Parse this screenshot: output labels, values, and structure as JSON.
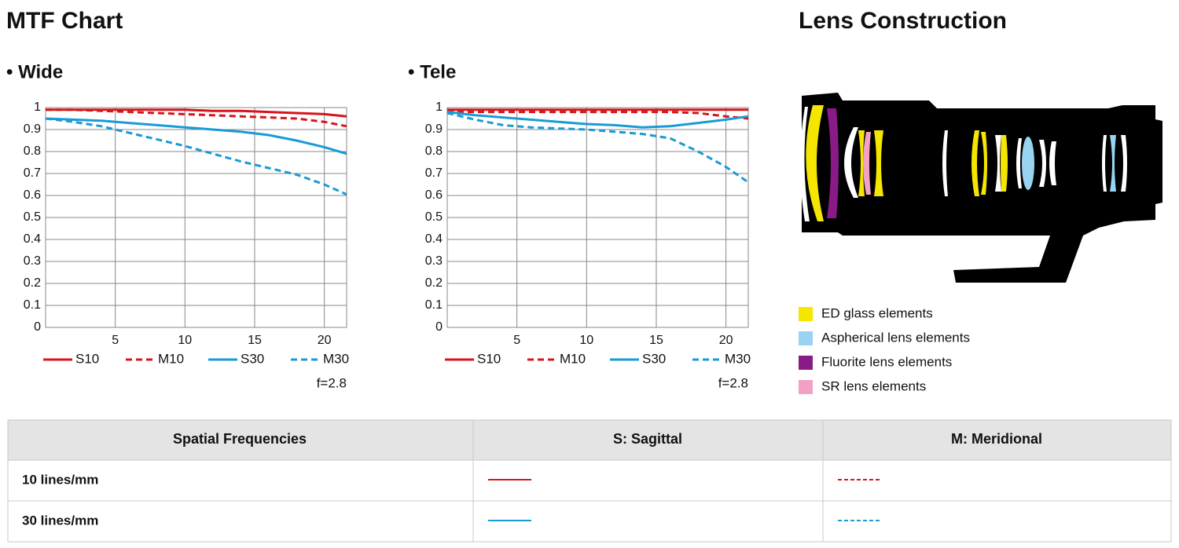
{
  "header": {
    "title": "MTF Chart"
  },
  "chart_data": [
    {
      "type": "line",
      "title": "• Wide",
      "x": [
        0,
        2,
        4,
        6,
        8,
        10,
        12,
        14,
        16,
        18,
        20,
        21.6
      ],
      "xlim": [
        0,
        21.6
      ],
      "xticks": [
        5,
        10,
        15,
        20
      ],
      "ylim": [
        0,
        1
      ],
      "yticks": [
        0,
        0.1,
        0.2,
        0.3,
        0.4,
        0.5,
        0.6,
        0.7,
        0.8,
        0.9,
        1
      ],
      "grid": true,
      "annotation": "f=2.8",
      "series": [
        {
          "name": "S10",
          "color": "#d7141a",
          "dashed": false,
          "values": [
            0.99,
            0.99,
            0.99,
            0.99,
            0.99,
            0.99,
            0.985,
            0.985,
            0.98,
            0.975,
            0.97,
            0.96
          ]
        },
        {
          "name": "M10",
          "color": "#d7141a",
          "dashed": true,
          "values": [
            0.99,
            0.99,
            0.985,
            0.98,
            0.975,
            0.97,
            0.965,
            0.96,
            0.955,
            0.95,
            0.935,
            0.915
          ]
        },
        {
          "name": "S30",
          "color": "#1a9ad6",
          "dashed": false,
          "values": [
            0.95,
            0.945,
            0.94,
            0.93,
            0.92,
            0.91,
            0.9,
            0.89,
            0.875,
            0.85,
            0.82,
            0.79
          ]
        },
        {
          "name": "M30",
          "color": "#1a9ad6",
          "dashed": true,
          "values": [
            0.95,
            0.935,
            0.915,
            0.885,
            0.855,
            0.825,
            0.79,
            0.755,
            0.725,
            0.695,
            0.65,
            0.605
          ]
        }
      ]
    },
    {
      "type": "line",
      "title": "• Tele",
      "x": [
        0,
        2,
        4,
        6,
        8,
        10,
        12,
        14,
        16,
        18,
        20,
        21.6
      ],
      "xlim": [
        0,
        21.6
      ],
      "xticks": [
        5,
        10,
        15,
        20
      ],
      "ylim": [
        0,
        1
      ],
      "yticks": [
        0,
        0.1,
        0.2,
        0.3,
        0.4,
        0.5,
        0.6,
        0.7,
        0.8,
        0.9,
        1
      ],
      "grid": true,
      "annotation": "f=2.8",
      "series": [
        {
          "name": "S10",
          "color": "#d7141a",
          "dashed": false,
          "values": [
            0.99,
            0.99,
            0.99,
            0.99,
            0.99,
            0.99,
            0.99,
            0.99,
            0.99,
            0.99,
            0.99,
            0.99
          ]
        },
        {
          "name": "M10",
          "color": "#d7141a",
          "dashed": true,
          "values": [
            0.98,
            0.98,
            0.98,
            0.98,
            0.98,
            0.98,
            0.98,
            0.98,
            0.98,
            0.975,
            0.96,
            0.95
          ]
        },
        {
          "name": "S30",
          "color": "#1a9ad6",
          "dashed": false,
          "values": [
            0.98,
            0.965,
            0.955,
            0.945,
            0.935,
            0.925,
            0.92,
            0.91,
            0.915,
            0.93,
            0.945,
            0.96
          ]
        },
        {
          "name": "M30",
          "color": "#1a9ad6",
          "dashed": true,
          "values": [
            0.975,
            0.945,
            0.92,
            0.91,
            0.905,
            0.9,
            0.89,
            0.88,
            0.86,
            0.8,
            0.73,
            0.66
          ]
        }
      ]
    }
  ],
  "lens_construction": {
    "title": "Lens Construction",
    "legend": [
      {
        "label": "ED glass elements",
        "color": "#f5e600"
      },
      {
        "label": "Aspherical lens elements",
        "color": "#99d3f2"
      },
      {
        "label": "Fluorite lens elements",
        "color": "#8b1a89"
      },
      {
        "label": "SR lens elements",
        "color": "#f2a0c4"
      }
    ]
  },
  "table": {
    "header": [
      "Spatial Frequencies",
      "S: Sagittal",
      "M: Meridional"
    ],
    "rows": [
      [
        "10 lines/mm"
      ],
      [
        "30 lines/mm"
      ]
    ]
  }
}
